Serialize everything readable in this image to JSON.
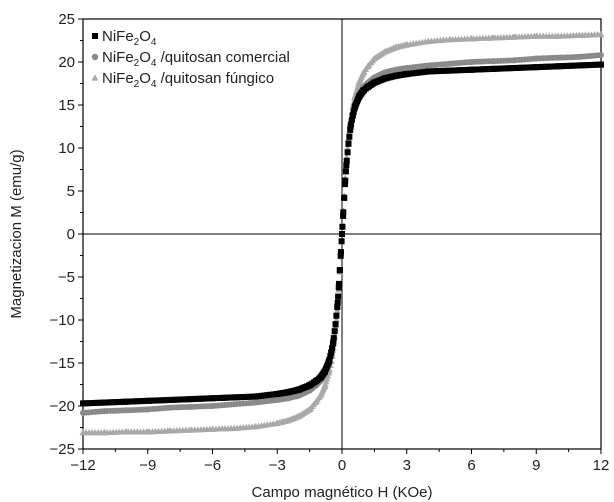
{
  "chart_data": {
    "type": "scatter",
    "xlabel": "Campo magnético H (KOe)",
    "ylabel": "Magnetizacion M (emu/g)",
    "xlim": [
      -12,
      12
    ],
    "ylim": [
      -25,
      25
    ],
    "x_ticks": [
      -12,
      -9,
      -6,
      -3,
      0,
      3,
      6,
      9,
      12
    ],
    "x_tick_labels": [
      "−12",
      "−9",
      "−6",
      "−3",
      "0",
      "3",
      "6",
      "9",
      "12"
    ],
    "y_ticks": [
      -25,
      -20,
      -15,
      -10,
      -5,
      0,
      5,
      10,
      15,
      20,
      25
    ],
    "y_tick_labels": [
      "−25",
      "−20",
      "−15",
      "−10",
      "−5",
      "0",
      "5",
      "10",
      "15",
      "20",
      "25"
    ],
    "legend_position": "top-left",
    "x": [
      -12,
      -11,
      -10,
      -9,
      -8,
      -7,
      -6,
      -5,
      -4,
      -3,
      -2.5,
      -2,
      -1.5,
      -1.2,
      -1,
      -0.8,
      -0.6,
      -0.5,
      -0.4,
      -0.3,
      -0.2,
      -0.15,
      -0.1,
      -0.05,
      0,
      0.05,
      0.1,
      0.15,
      0.2,
      0.3,
      0.4,
      0.5,
      0.6,
      0.8,
      1,
      1.2,
      1.5,
      2,
      2.5,
      3,
      4,
      5,
      6,
      7,
      8,
      9,
      10,
      11,
      12
    ],
    "series": [
      {
        "name": "NiFe₂O₄",
        "marker": "square",
        "color": "#000000",
        "values": [
          -19.7,
          -19.6,
          -19.5,
          -19.4,
          -19.3,
          -19.2,
          -19.1,
          -19.0,
          -18.9,
          -18.6,
          -18.4,
          -18.1,
          -17.6,
          -17.1,
          -16.7,
          -16.0,
          -14.8,
          -13.8,
          -12.5,
          -10.5,
          -8.0,
          -6.2,
          -4.2,
          -2.1,
          0,
          2.1,
          4.2,
          6.2,
          8.0,
          10.5,
          12.5,
          13.8,
          14.8,
          16.0,
          16.7,
          17.1,
          17.6,
          18.1,
          18.4,
          18.6,
          18.9,
          19.0,
          19.1,
          19.2,
          19.3,
          19.4,
          19.5,
          19.6,
          19.7
        ]
      },
      {
        "name": "NiFe₂O₄ /quitosan comercial",
        "marker": "circle",
        "color": "#8a8a8a",
        "values": [
          -20.8,
          -20.6,
          -20.5,
          -20.4,
          -20.2,
          -20.1,
          -20.0,
          -19.8,
          -19.6,
          -19.3,
          -19.1,
          -18.8,
          -18.2,
          -17.6,
          -17.1,
          -16.3,
          -15.0,
          -13.9,
          -12.6,
          -10.6,
          -8.1,
          -6.3,
          -4.3,
          -2.2,
          0,
          2.2,
          4.3,
          6.3,
          8.1,
          10.6,
          12.6,
          13.9,
          15.0,
          16.3,
          17.1,
          17.6,
          18.2,
          18.8,
          19.1,
          19.3,
          19.6,
          19.8,
          20.0,
          20.1,
          20.2,
          20.4,
          20.5,
          20.6,
          20.8
        ]
      },
      {
        "name": "NiFe₂O₄ /quitosan fúngico",
        "marker": "triangle",
        "color": "#a9a9a9",
        "values": [
          -23.1,
          -23.1,
          -23.0,
          -23.0,
          -22.9,
          -22.8,
          -22.7,
          -22.6,
          -22.4,
          -22.0,
          -21.7,
          -21.2,
          -20.4,
          -19.5,
          -18.8,
          -17.7,
          -16.0,
          -14.8,
          -13.2,
          -11.0,
          -8.4,
          -6.5,
          -4.4,
          -2.2,
          0,
          2.2,
          4.4,
          6.5,
          8.4,
          11.0,
          13.2,
          14.8,
          16.0,
          17.7,
          18.8,
          19.5,
          20.4,
          21.2,
          21.7,
          22.0,
          22.4,
          22.6,
          22.7,
          22.8,
          22.9,
          23.0,
          23.0,
          23.1,
          23.2
        ]
      }
    ]
  },
  "legend": {
    "items": [
      {
        "base": "NiFe",
        "sub1": "2",
        "mid": "O",
        "sub2": "4",
        "suffix": ""
      },
      {
        "base": "NiFe",
        "sub1": "2",
        "mid": "O",
        "sub2": "4",
        "suffix": " /quitosan comercial"
      },
      {
        "base": "NiFe",
        "sub1": "2",
        "mid": "O",
        "sub2": "4",
        "suffix": " /quitosan fúngico"
      }
    ]
  }
}
